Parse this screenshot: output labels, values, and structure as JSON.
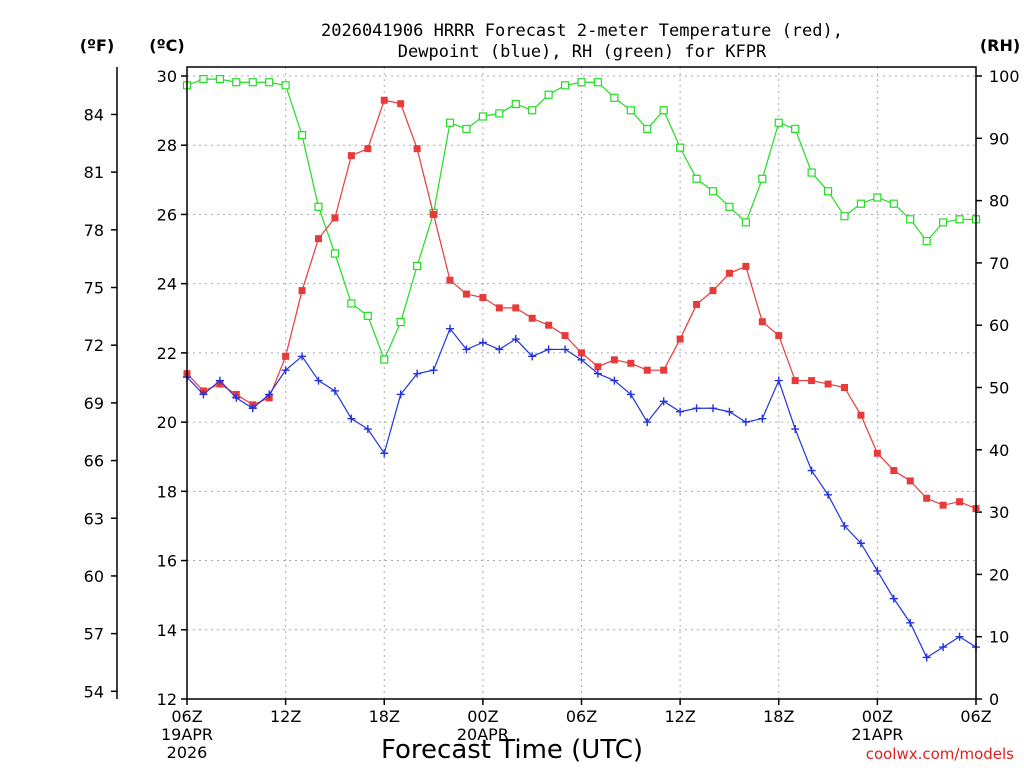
{
  "chart_data": {
    "type": "line",
    "title_line1": "2026041906 HRRR Forecast 2-meter Temperature (red),",
    "title_line2": "Dewpoint (blue), RH (green) for KFPR",
    "xlabel": "Forecast Time (UTC)",
    "credit": "coolwx.com/models",
    "left_unit_f": "(ºF)",
    "left_unit_c": "(ºC)",
    "right_unit": "(RH)",
    "x_range_hours": [
      0,
      48
    ],
    "x_ticks": [
      {
        "h": 0,
        "line1": "06Z",
        "line2": "19APR",
        "line3": "2026"
      },
      {
        "h": 6,
        "line1": "12Z",
        "line2": "",
        "line3": ""
      },
      {
        "h": 12,
        "line1": "18Z",
        "line2": "",
        "line3": ""
      },
      {
        "h": 18,
        "line1": "00Z",
        "line2": "20APR",
        "line3": ""
      },
      {
        "h": 24,
        "line1": "06Z",
        "line2": "",
        "line3": ""
      },
      {
        "h": 30,
        "line1": "12Z",
        "line2": "",
        "line3": ""
      },
      {
        "h": 36,
        "line1": "18Z",
        "line2": "",
        "line3": ""
      },
      {
        "h": 42,
        "line1": "00Z",
        "line2": "21APR",
        "line3": ""
      },
      {
        "h": 48,
        "line1": "06Z",
        "line2": "",
        "line3": ""
      }
    ],
    "celsius_axis": {
      "range": [
        12,
        30
      ],
      "ticks": [
        12,
        14,
        16,
        18,
        20,
        22,
        24,
        26,
        28,
        30
      ]
    },
    "fahrenheit_ticks": [
      54,
      57,
      60,
      63,
      66,
      69,
      72,
      75,
      78,
      81,
      84
    ],
    "rh_axis": {
      "range": [
        0,
        100
      ],
      "ticks": [
        0,
        10,
        20,
        30,
        40,
        50,
        60,
        70,
        80,
        90,
        100
      ]
    },
    "grid": true,
    "series": [
      {
        "name": "Temperature",
        "color": "#e83a3a",
        "marker": "filled-square",
        "axis": "celsius",
        "values": [
          21.4,
          20.9,
          21.1,
          20.8,
          20.5,
          20.7,
          21.9,
          23.8,
          25.3,
          25.9,
          27.7,
          27.9,
          29.3,
          29.2,
          27.9,
          26.0,
          24.1,
          23.7,
          23.6,
          23.3,
          23.3,
          23.0,
          22.8,
          22.5,
          22.0,
          21.6,
          21.8,
          21.7,
          21.5,
          21.5,
          22.4,
          23.4,
          23.8,
          24.3,
          24.5,
          22.9,
          22.5,
          21.2,
          21.2,
          21.1,
          21.0,
          20.2,
          19.1,
          18.6,
          18.3,
          17.8,
          17.6,
          17.7,
          17.5
        ]
      },
      {
        "name": "Dewpoint",
        "color": "#2233dd",
        "marker": "plus",
        "axis": "celsius",
        "values": [
          21.3,
          20.8,
          21.2,
          20.7,
          20.4,
          20.8,
          21.5,
          21.9,
          21.2,
          20.9,
          20.1,
          19.8,
          19.1,
          20.8,
          21.4,
          21.5,
          22.7,
          22.1,
          22.3,
          22.1,
          22.4,
          21.9,
          22.1,
          22.1,
          21.8,
          21.4,
          21.2,
          20.8,
          20.0,
          20.6,
          20.3,
          20.4,
          20.4,
          20.3,
          20.0,
          20.1,
          21.2,
          19.8,
          18.6,
          17.9,
          17.0,
          16.5,
          15.7,
          14.9,
          14.2,
          13.2,
          13.5,
          13.8,
          13.5
        ]
      },
      {
        "name": "RH",
        "color": "#22dd22",
        "marker": "open-square",
        "axis": "rh",
        "values": [
          98.5,
          99.5,
          99.5,
          99.0,
          99.0,
          99.0,
          98.5,
          90.5,
          79,
          71.5,
          63.5,
          61.5,
          54.5,
          60.5,
          69.5,
          78,
          92.5,
          91.5,
          93.5,
          94,
          95.5,
          94.5,
          97,
          98.5,
          99,
          99,
          96.5,
          94.5,
          91.5,
          94.5,
          88.5,
          83.5,
          81.5,
          79,
          76.5,
          83.5,
          92.5,
          91.5,
          84.5,
          81.5,
          77.5,
          79.5,
          80.5,
          79.5,
          77,
          73.5,
          76.5,
          77,
          77
        ]
      }
    ]
  }
}
